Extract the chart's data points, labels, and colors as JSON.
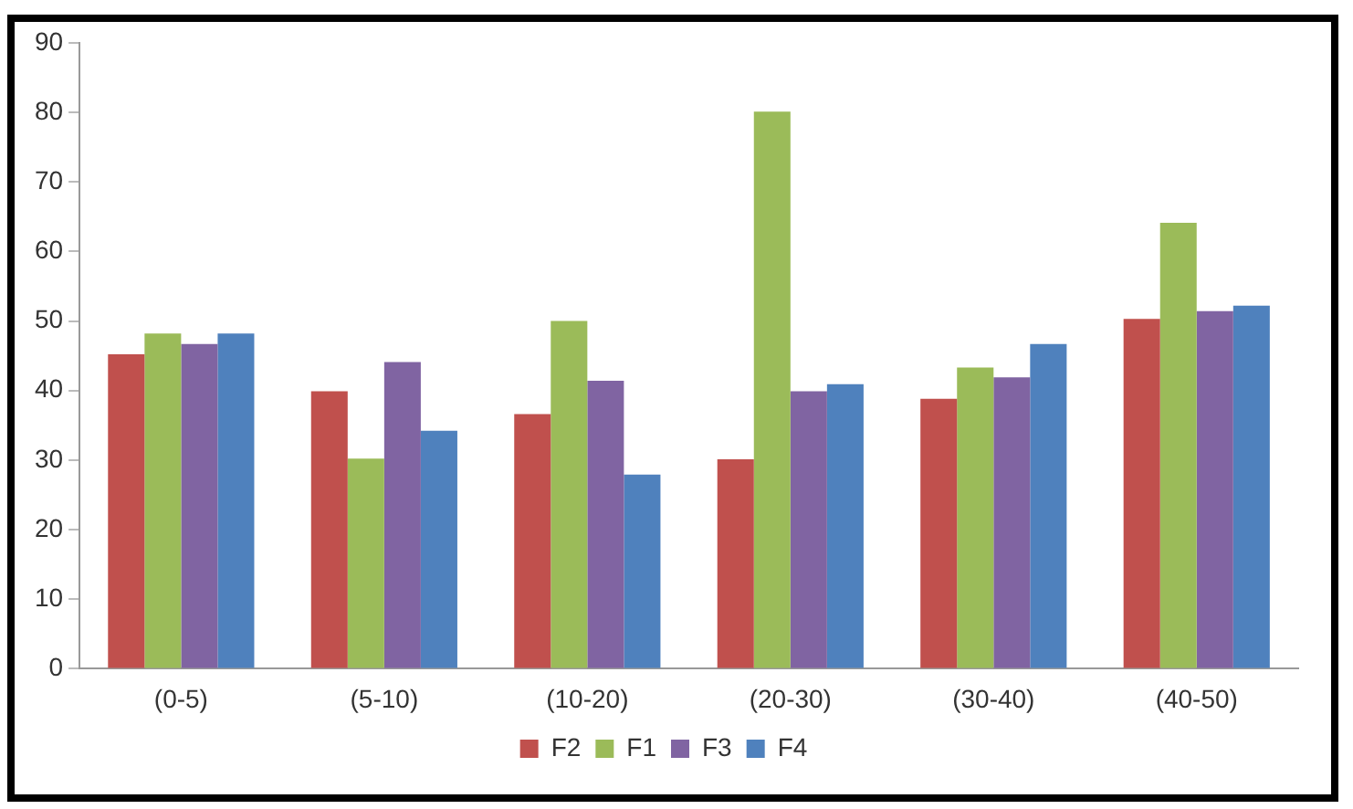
{
  "chart_data": {
    "type": "bar",
    "categories": [
      "(0-5)",
      "(5-10)",
      "(10-20)",
      "(20-30)",
      "(30-40)",
      "(40-50)"
    ],
    "series": [
      {
        "name": "F2",
        "color": "#c0504d",
        "values": [
          45.2,
          39.9,
          36.6,
          30.1,
          38.8,
          50.3
        ]
      },
      {
        "name": "F1",
        "color": "#9bbb59",
        "values": [
          48.2,
          30.2,
          50,
          80.1,
          43.3,
          64.1
        ]
      },
      {
        "name": "F3",
        "color": "#8064a2",
        "values": [
          46.7,
          44.1,
          41.4,
          39.9,
          41.9,
          51.4
        ]
      },
      {
        "name": "F4",
        "color": "#4f81bd",
        "values": [
          48.2,
          34.2,
          27.9,
          40.9,
          46.7,
          52.2
        ]
      }
    ],
    "ylim": [
      0,
      90
    ],
    "yticks": [
      0,
      10,
      20,
      30,
      40,
      50,
      60,
      70,
      80,
      90
    ],
    "grid": false,
    "legend": "bottom"
  }
}
